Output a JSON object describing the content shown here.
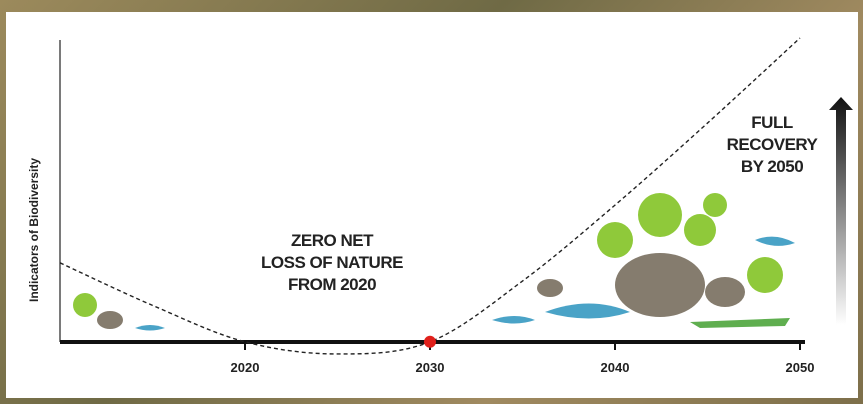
{
  "chart_data": {
    "type": "line",
    "y_label": "Indicators of Biodiversity",
    "x": [
      2010,
      2015,
      2020,
      2025,
      2030,
      2035,
      2040,
      2045,
      2050
    ],
    "series": [
      {
        "name": "Biodiversity trajectory",
        "color": "#222222",
        "values": [
          26,
          12,
          0,
          -4,
          0,
          20,
          45,
          72,
          100
        ]
      }
    ],
    "highlight": {
      "x": 2030,
      "y": 0,
      "color": "#e0201b"
    },
    "xlim": [
      2010,
      2050
    ],
    "xticks": [
      2020,
      2030,
      2040,
      2050
    ],
    "ylim": [
      -5,
      100
    ],
    "annotations": [
      {
        "lines": [
          "ZERO NET",
          "LOSS OF NATURE",
          "FROM 2020"
        ]
      },
      {
        "lines": [
          "FULL",
          "RECOVERY",
          "BY 2050"
        ]
      }
    ]
  }
}
